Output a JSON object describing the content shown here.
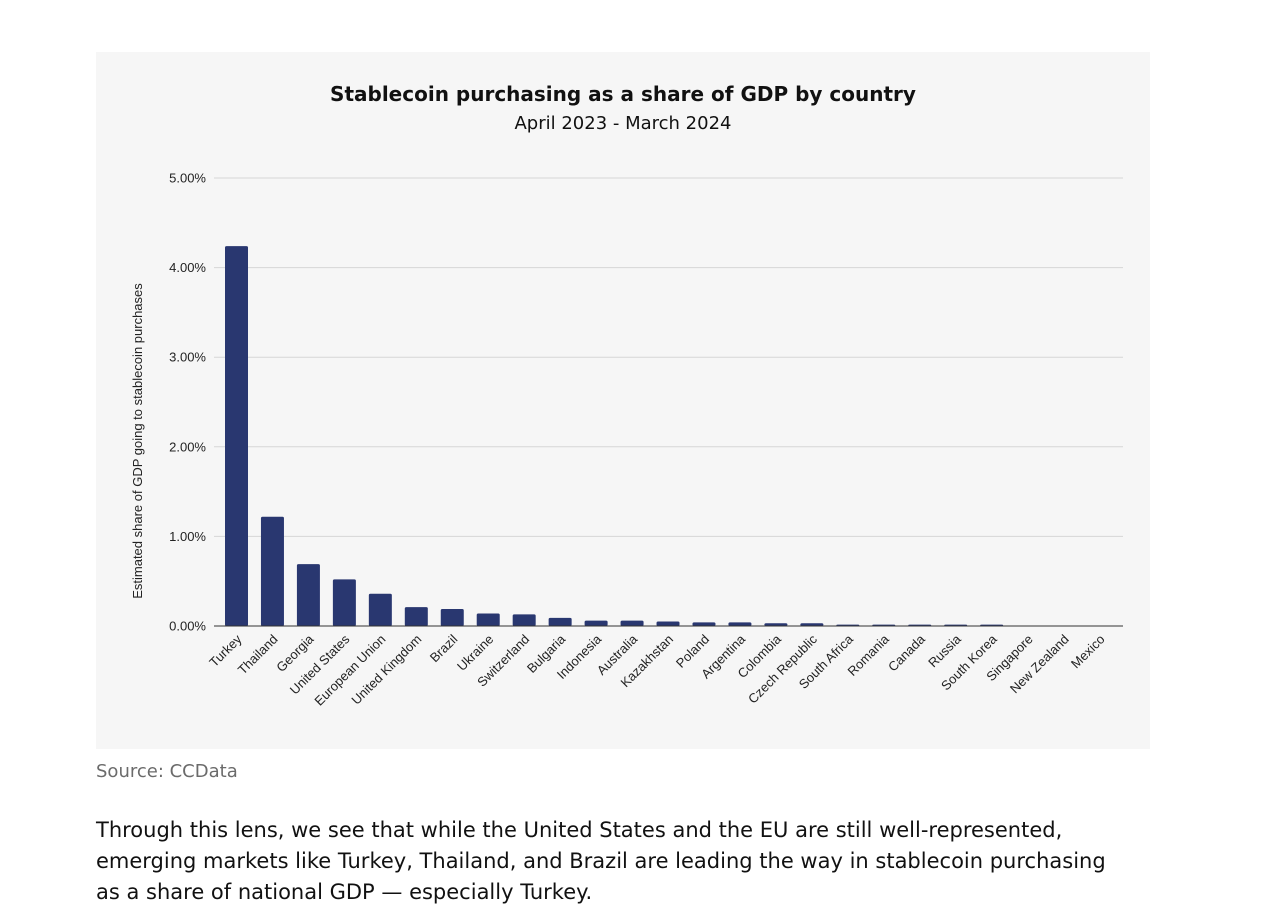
{
  "source": "Source: CCData",
  "body_text": "Through this lens, we see that while the United States and the EU are still well-represented, emerging markets like Turkey, Thailand, and Brazil are leading the way in stablecoin purchasing as a share of national GDP — especially Turkey.",
  "chart_data": {
    "type": "bar",
    "title": "Stablecoin purchasing as a share of GDP by country",
    "subtitle": "April 2023 - March 2024",
    "xlabel": "",
    "ylabel": "Estimated share of GDP going to stablecoin purchases",
    "ylim": [
      0,
      5
    ],
    "yticks": [
      0,
      1,
      2,
      3,
      4,
      5
    ],
    "ytick_labels": [
      "0.00%",
      "1.00%",
      "2.00%",
      "3.00%",
      "4.00%",
      "5.00%"
    ],
    "grid": true,
    "legend": "none",
    "bar_color": "#293770",
    "categories": [
      "Turkey",
      "Thailand",
      "Georgia",
      "United States",
      "European Union",
      "United Kingdom",
      "Brazil",
      "Ukraine",
      "Switzerland",
      "Bulgaria",
      "Indonesia",
      "Australia",
      "Kazakhstan",
      "Poland",
      "Argentina",
      "Colombia",
      "Czech Republic",
      "South Africa",
      "Romania",
      "Canada",
      "Russia",
      "South Korea",
      "Singapore",
      "New Zealand",
      "Mexico"
    ],
    "values": [
      4.24,
      1.22,
      0.69,
      0.52,
      0.36,
      0.21,
      0.19,
      0.14,
      0.13,
      0.09,
      0.06,
      0.06,
      0.05,
      0.04,
      0.04,
      0.03,
      0.03,
      0.015,
      0.015,
      0.015,
      0.015,
      0.015,
      0.005,
      0.005,
      0.005
    ]
  }
}
